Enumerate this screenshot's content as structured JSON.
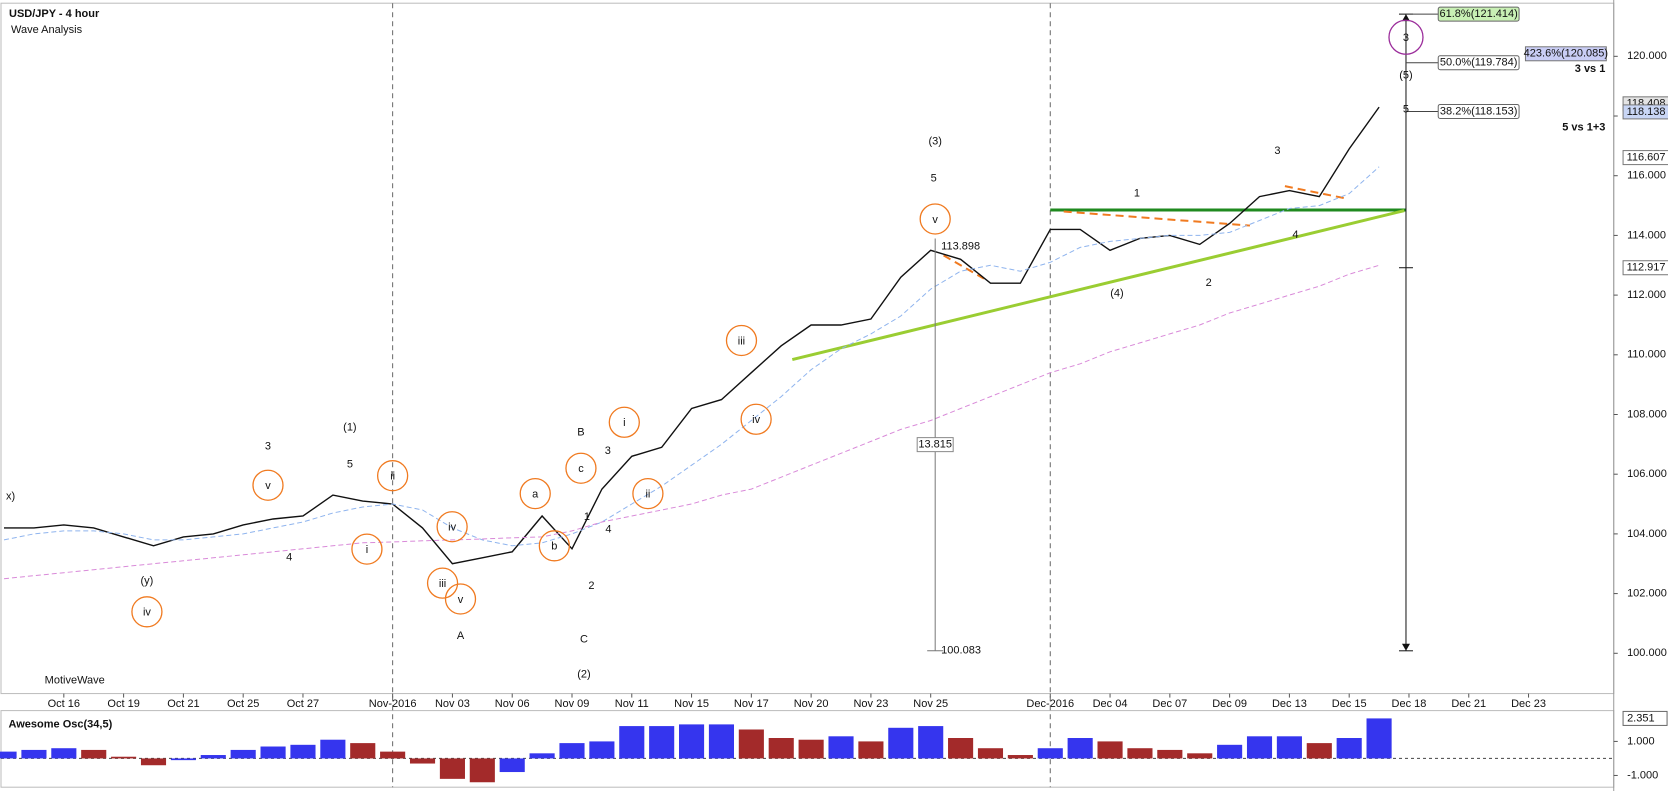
{
  "chart_data": [
    {
      "type": "line",
      "title": "USD/JPY - 4 hour",
      "subtitle": "Wave Analysis",
      "watermark": "MotiveWave",
      "categories": [
        null,
        null,
        "Oct 16",
        null,
        "Oct 19",
        null,
        "Oct 21",
        null,
        "Oct 25",
        null,
        "Oct 27",
        null,
        null,
        "Nov-2016",
        null,
        "Nov 03",
        null,
        "Nov 06",
        null,
        "Nov 09",
        null,
        "Nov 11",
        null,
        "Nov 15",
        null,
        "Nov 17",
        null,
        "Nov 20",
        null,
        "Nov 23",
        null,
        "Nov 25",
        null,
        null,
        null,
        "Dec-2016",
        null,
        "Dec 04",
        null,
        "Dec 07",
        null,
        "Dec 09",
        null,
        "Dec 13",
        null,
        "Dec 15",
        null,
        "Dec 18",
        null,
        "Dec 21",
        null,
        "Dec 23",
        null,
        null
      ],
      "series": [
        {
          "color": "#111111",
          "style": "solid",
          "values": [
            104.2,
            104.2,
            104.3,
            104.2,
            103.9,
            103.6,
            103.9,
            104.0,
            104.3,
            104.5,
            104.6,
            105.3,
            105.1,
            105.0,
            104.2,
            103.0,
            103.2,
            103.4,
            104.6,
            103.5,
            105.5,
            106.6,
            106.9,
            108.2,
            108.5,
            109.4,
            110.3,
            111.0,
            111.0,
            111.2,
            112.6,
            113.5,
            113.2,
            112.4,
            112.4,
            114.2,
            114.2,
            113.5,
            113.9,
            114.0,
            113.7,
            114.4,
            115.3,
            115.5,
            115.3,
            116.9,
            118.3,
            null,
            null,
            null,
            null,
            null,
            null,
            null
          ]
        },
        {
          "color": "#8fb4ee",
          "style": "dashed",
          "values": [
            103.8,
            104.0,
            104.1,
            104.1,
            104.0,
            103.8,
            103.8,
            103.9,
            104.0,
            104.2,
            104.4,
            104.7,
            104.9,
            105.0,
            104.8,
            104.2,
            103.8,
            103.6,
            103.7,
            104.0,
            104.4,
            105.0,
            105.6,
            106.3,
            107.0,
            107.8,
            108.6,
            109.5,
            110.2,
            110.7,
            111.3,
            112.2,
            112.8,
            113.0,
            112.8,
            113.1,
            113.6,
            113.8,
            113.9,
            114.0,
            114.0,
            114.1,
            114.5,
            114.9,
            115.0,
            115.4,
            116.3,
            null,
            null,
            null,
            null,
            null,
            null,
            null
          ]
        },
        {
          "color": "#d98ad9",
          "style": "dashed",
          "values": [
            102.5,
            102.6,
            102.7,
            102.8,
            102.9,
            103.0,
            103.1,
            103.2,
            103.3,
            103.4,
            103.5,
            103.6,
            103.7,
            103.73,
            103.77,
            103.8,
            103.83,
            103.87,
            103.9,
            104.1,
            104.4,
            104.6,
            104.8,
            105.0,
            105.3,
            105.5,
            105.9,
            106.3,
            106.7,
            107.1,
            107.5,
            107.8,
            108.2,
            108.6,
            109.0,
            109.4,
            109.7,
            110.1,
            110.4,
            110.7,
            111.0,
            111.4,
            111.7,
            112.0,
            112.3,
            112.7,
            113.0,
            null,
            null,
            null,
            null,
            null,
            null,
            null
          ]
        }
      ],
      "ylim": [
        98.65,
        121.78
      ],
      "yticks": [
        {
          "value": 100,
          "label": "100.000"
        },
        {
          "value": 102,
          "label": "102.000"
        },
        {
          "value": 104,
          "label": "104.000"
        },
        {
          "value": 106,
          "label": "106.000"
        },
        {
          "value": 108,
          "label": "108.000"
        },
        {
          "value": 110,
          "label": "110.000"
        },
        {
          "value": 112,
          "label": "112.000"
        },
        {
          "value": 114,
          "label": "114.000"
        },
        {
          "value": 116,
          "label": "116.000"
        },
        {
          "value": 118,
          "label": "118.000"
        },
        {
          "value": 120,
          "label": "120.000"
        }
      ],
      "price_labels": [
        {
          "value": 120.085,
          "label": "423.6%(120.085)",
          "color": "#c9cdf5"
        },
        {
          "value": 118.408,
          "label": "118.408",
          "color": "#e4e4e4"
        },
        {
          "value": 118.138,
          "label": "118.138",
          "color": "#c9d6f5"
        },
        {
          "value": 116.607,
          "label": "116.607",
          "color": "#ffffff"
        },
        {
          "value": 112.917,
          "label": "112.917",
          "color": "#ffffff"
        }
      ],
      "fib_levels": [
        {
          "value": 121.414,
          "label": "61.8%(121.414)",
          "color": "#c8f0b4"
        },
        {
          "value": 119.784,
          "label": "50.0%(119.784)",
          "color": "#ffffff"
        },
        {
          "value": 118.153,
          "label": "38.2%(118.153)",
          "color": "#ffffff"
        }
      ],
      "arrow": {
        "x": 46.9,
        "from": 121.414,
        "to": 100.083,
        "mid": 112.917
      },
      "measure": {
        "x": 31.15,
        "from": 113.898,
        "to": 100.083,
        "size": 13.815
      },
      "trendlines": [
        {
          "x": [
            35,
            46.9
          ],
          "y": [
            114.85,
            114.85
          ],
          "color": "#1f8a1f",
          "style": "solid"
        },
        {
          "x": [
            26.37,
            46.84
          ],
          "y": [
            109.84,
            114.83
          ],
          "color": "#9acd32",
          "style": "solid"
        },
        {
          "x": [
            35.45,
            41.68
          ],
          "y": [
            114.8,
            114.33
          ],
          "color": "#f07a20",
          "style": "dashed"
        },
        {
          "x": [
            42.85,
            44.98
          ],
          "y": [
            115.65,
            115.22
          ],
          "color": "#f07a20",
          "style": "dashed"
        },
        {
          "x": [
            31.43,
            32.78
          ],
          "y": [
            113.33,
            112.55
          ],
          "color": "#f07a20",
          "style": "dashed"
        }
      ],
      "annotations": [
        {
          "text": "(1)",
          "x": 11.57,
          "y": 107.59,
          "color": "#1a1ae6"
        },
        {
          "text": "(2)",
          "x": 19.4,
          "y": 99.32,
          "color": "#1a1ae6"
        },
        {
          "text": "(3)",
          "x": 31.15,
          "y": 117.18,
          "color": "#1a1ae6"
        },
        {
          "text": "(4)",
          "x": 37.23,
          "y": 112.09,
          "color": "#1a1ae6"
        },
        {
          "text": "(5)",
          "x": 46.9,
          "y": 119.39,
          "color": "#1a1ae6"
        },
        {
          "text": "3",
          "x": 46.9,
          "y": 120.64,
          "color": "#9b2d9b",
          "circled": true
        },
        {
          "text": "3",
          "x": 8.83,
          "y": 106.95,
          "color": "#7a1414"
        },
        {
          "text": "5",
          "x": 11.57,
          "y": 106.35,
          "color": "#7a1414"
        },
        {
          "text": "4",
          "x": 9.54,
          "y": 103.24,
          "color": "#7a1414"
        },
        {
          "text": "B",
          "x": 19.3,
          "y": 107.42,
          "color": "#7a1414"
        },
        {
          "text": "A",
          "x": 15.27,
          "y": 100.61,
          "color": "#7a1414"
        },
        {
          "text": "C",
          "x": 19.4,
          "y": 100.5,
          "color": "#7a1414"
        },
        {
          "text": "1",
          "x": 19.5,
          "y": 104.6,
          "color": "#7a1414"
        },
        {
          "text": "2",
          "x": 19.65,
          "y": 102.28,
          "color": "#7a1414"
        },
        {
          "text": "3",
          "x": 20.2,
          "y": 106.8,
          "color": "#7a1414"
        },
        {
          "text": "4",
          "x": 20.22,
          "y": 104.17,
          "color": "#7a1414"
        },
        {
          "text": "5",
          "x": 31.1,
          "y": 115.94,
          "color": "#7a1414"
        },
        {
          "text": "1",
          "x": 37.9,
          "y": 115.44,
          "color": "#7a1414"
        },
        {
          "text": "2",
          "x": 40.3,
          "y": 112.44,
          "color": "#7a1414"
        },
        {
          "text": "3",
          "x": 42.6,
          "y": 116.86,
          "color": "#7a1414"
        },
        {
          "text": "4",
          "x": 43.2,
          "y": 114.05,
          "color": "#7a1414"
        },
        {
          "text": "5",
          "x": 46.9,
          "y": 118.25,
          "color": "#7a1414"
        },
        {
          "text": "v",
          "x": 8.83,
          "y": 105.63,
          "color": "#f07a20",
          "circled": true
        },
        {
          "text": "ii",
          "x": 13.0,
          "y": 105.95,
          "color": "#f07a20",
          "circled": true
        },
        {
          "text": "i",
          "x": 12.14,
          "y": 103.49,
          "color": "#f07a20",
          "circled": true
        },
        {
          "text": "iv",
          "x": 4.78,
          "y": 101.39,
          "color": "#f07a20",
          "circled": true
        },
        {
          "text": "iv",
          "x": 14.99,
          "y": 104.24,
          "color": "#f07a20",
          "circled": true
        },
        {
          "text": "iii",
          "x": 14.67,
          "y": 102.35,
          "color": "#f07a20",
          "circled": true
        },
        {
          "text": "v",
          "x": 15.27,
          "y": 101.82,
          "color": "#f07a20",
          "circled": true
        },
        {
          "text": "a",
          "x": 17.77,
          "y": 105.35,
          "color": "#f07a20",
          "circled": true
        },
        {
          "text": "b",
          "x": 18.41,
          "y": 103.6,
          "color": "#f07a20",
          "circled": true
        },
        {
          "text": "c",
          "x": 19.3,
          "y": 106.2,
          "color": "#f07a20",
          "circled": true
        },
        {
          "text": "i",
          "x": 20.75,
          "y": 107.74,
          "color": "#f07a20",
          "circled": true
        },
        {
          "text": "ii",
          "x": 21.54,
          "y": 105.35,
          "color": "#f07a20",
          "circled": true
        },
        {
          "text": "iii",
          "x": 24.67,
          "y": 110.48,
          "color": "#f07a20",
          "circled": true
        },
        {
          "text": "iv",
          "x": 25.16,
          "y": 107.84,
          "color": "#f07a20",
          "circled": true
        },
        {
          "text": "v",
          "x": 31.15,
          "y": 114.55,
          "color": "#f07a20",
          "circled": true
        },
        {
          "text": "(y)",
          "x": 4.78,
          "y": 102.46,
          "color": "#9acd32"
        },
        {
          "text": "x)",
          "x": 0.22,
          "y": 105.28,
          "color": "#9acd32"
        },
        {
          "text": "3 vs 1",
          "x": 53.57,
          "y": 119.57,
          "color": "#111111",
          "note": true
        },
        {
          "text": "5 vs 1+3",
          "x": 53.57,
          "y": 117.61,
          "color": "#111111",
          "note": true
        }
      ]
    },
    {
      "type": "bar",
      "title": "Awesome Osc(34,5)",
      "up_color": "#3535ee",
      "down_color": "#a32a2a",
      "values": [
        0.4,
        0.5,
        0.6,
        0.5,
        0.1,
        -0.4,
        -0.1,
        0.2,
        0.5,
        0.7,
        0.8,
        1.1,
        0.9,
        0.4,
        -0.3,
        -1.2,
        -1.4,
        -0.8,
        0.3,
        0.9,
        1.0,
        1.9,
        1.9,
        2.0,
        2.0,
        1.7,
        1.2,
        1.1,
        1.3,
        1.0,
        1.8,
        1.9,
        1.2,
        0.6,
        0.2,
        0.6,
        1.2,
        1.0,
        0.6,
        0.5,
        0.3,
        0.8,
        1.3,
        1.3,
        0.9,
        1.2,
        2.351,
        null,
        null,
        null,
        null,
        null,
        null,
        null
      ],
      "ylim": [
        -1.69,
        2.81
      ],
      "yticks": [
        {
          "value": 1,
          "label": "1.000"
        },
        {
          "value": -1,
          "label": "-1.000"
        }
      ],
      "last_label": 2.351
    }
  ]
}
